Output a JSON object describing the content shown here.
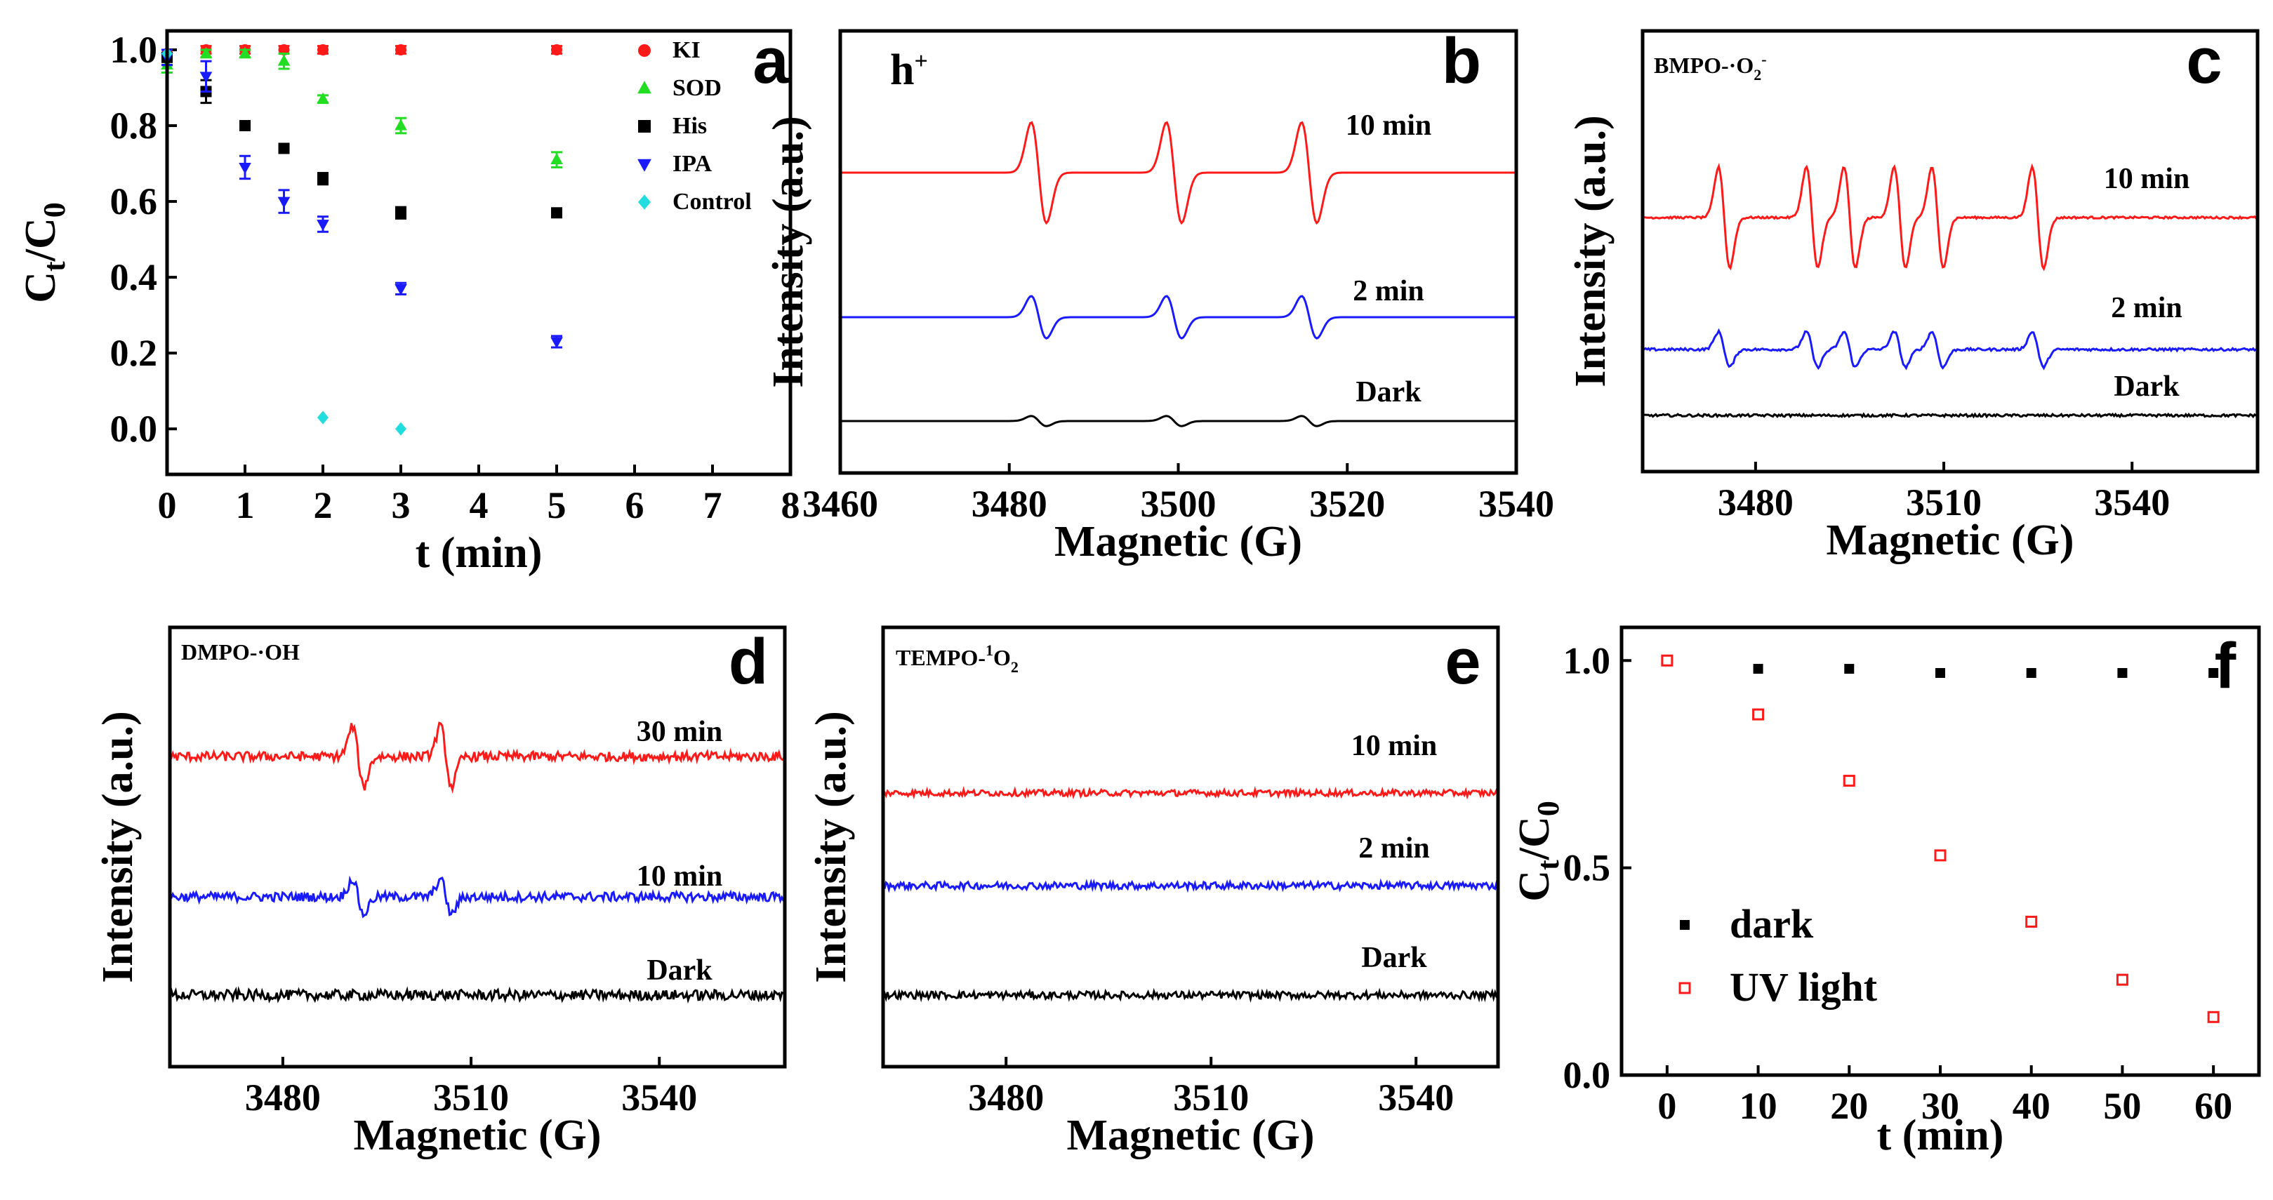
{
  "chart_data": [
    {
      "id": "a",
      "panel_label": "a",
      "type": "scatter",
      "xlabel": "t (min)",
      "ylabel_main": "C",
      "ylabel_sub1": "t",
      "ylabel_mid": "/C",
      "ylabel_sub2": "0",
      "xlim": [
        0,
        8
      ],
      "ylim": [
        -0.12,
        1.05
      ],
      "xticks": [
        "0",
        "1",
        "2",
        "3",
        "4",
        "5",
        "6",
        "7",
        "8"
      ],
      "yticks": [
        "0.0",
        "0.2",
        "0.4",
        "0.6",
        "0.8",
        "1.0"
      ],
      "series": [
        {
          "name": "KI",
          "color": "#ff1a1a",
          "marker": "circle",
          "x": [
            0,
            0.5,
            1,
            1.5,
            2,
            3,
            5
          ],
          "y": [
            0.99,
            1.0,
            1.0,
            1.0,
            1.0,
            1.0,
            1.0
          ],
          "err": [
            0.01,
            0.01,
            0.01,
            0.01,
            0.01,
            0.01,
            0.01
          ]
        },
        {
          "name": "SOD",
          "color": "#22dd22",
          "marker": "triangle-up",
          "x": [
            0,
            0.5,
            1,
            1.5,
            2,
            3,
            5
          ],
          "y": [
            0.96,
            0.99,
            0.99,
            0.97,
            0.87,
            0.8,
            0.71
          ],
          "err": [
            0.02,
            0.01,
            0.01,
            0.02,
            0.01,
            0.02,
            0.02
          ]
        },
        {
          "name": "His",
          "color": "#000000",
          "marker": "square",
          "x": [
            0,
            0.5,
            1,
            1.5,
            2,
            3,
            5
          ],
          "y": [
            0.98,
            0.89,
            0.8,
            0.74,
            0.66,
            0.57,
            0.57
          ],
          "err": [
            0.02,
            0.03,
            0.01,
            0.01,
            0.015,
            0.015,
            0.01
          ]
        },
        {
          "name": "IPA",
          "color": "#1a1aff",
          "marker": "triangle-down",
          "x": [
            0,
            0.5,
            1,
            1.5,
            2,
            3,
            5
          ],
          "y": [
            0.98,
            0.93,
            0.69,
            0.6,
            0.54,
            0.37,
            0.23
          ],
          "err": [
            0.02,
            0.04,
            0.03,
            0.03,
            0.02,
            0.015,
            0.015
          ]
        },
        {
          "name": "Control",
          "color": "#22dddd",
          "marker": "diamond",
          "x": [
            0,
            2,
            3
          ],
          "y": [
            0.99,
            0.03,
            0.0
          ],
          "err": [
            0,
            0,
            0
          ]
        }
      ]
    },
    {
      "id": "b",
      "panel_label": "b",
      "type": "line",
      "species_main": "h",
      "species_sup": "+",
      "xlabel": "Magnetic (G)",
      "ylabel": "Intensity (a.u.)",
      "xlim": [
        3460,
        3540
      ],
      "xticks": [
        "3460",
        "3480",
        "3500",
        "3520",
        "3540"
      ],
      "peak_centers": [
        3483.5,
        3499.5,
        3515.5
      ],
      "series": [
        {
          "name": "10 min",
          "color": "#ff1a1a",
          "amplitude": 1.0,
          "noise": 0.0
        },
        {
          "name": "2 min",
          "color": "#1a1aff",
          "amplitude": 0.42,
          "noise": 0.0
        },
        {
          "name": "Dark",
          "color": "#000000",
          "amplitude": 0.1,
          "noise": 0.0
        }
      ]
    },
    {
      "id": "c",
      "panel_label": "c",
      "type": "line",
      "species_main": "BMPO-·O",
      "species_sub": "2",
      "species_sup": "-",
      "xlabel": "Magnetic (G)",
      "ylabel": "Intensity (a.u.)",
      "xlim": [
        3462,
        3560
      ],
      "xticks": [
        "3480",
        "3510",
        "3540"
      ],
      "peak_centers": [
        3475,
        3489,
        3495,
        3503,
        3509,
        3525
      ],
      "series": [
        {
          "name": "10 min",
          "color": "#ff1a1a",
          "amplitude": 1.0,
          "noise": 0.04
        },
        {
          "name": "2 min",
          "color": "#1a1aff",
          "amplitude": 0.35,
          "noise": 0.05
        },
        {
          "name": "Dark",
          "color": "#000000",
          "amplitude": 0.0,
          "noise": 0.05
        }
      ]
    },
    {
      "id": "d",
      "panel_label": "d",
      "type": "line",
      "species_main": "DMPO-·OH",
      "xlabel": "Magnetic (G)",
      "ylabel": "Intensity (a.u.)",
      "xlim": [
        3462,
        3560
      ],
      "xticks": [
        "3480",
        "3510",
        "3540"
      ],
      "peak_centers": [
        3492,
        3506
      ],
      "series": [
        {
          "name": "30 min",
          "color": "#ff1a1a",
          "amplitude": 0.6,
          "noise": 0.18
        },
        {
          "name": "10 min",
          "color": "#1a1aff",
          "amplitude": 0.35,
          "noise": 0.18
        },
        {
          "name": "Dark",
          "color": "#000000",
          "amplitude": 0.0,
          "noise": 0.2
        }
      ]
    },
    {
      "id": "e",
      "panel_label": "e",
      "type": "line",
      "species_main": "TEMPO-",
      "species_sup": "1",
      "species_tail": "O",
      "species_sub": "2",
      "xlabel": "Magnetic (G)",
      "ylabel": "Intensity (a.u.)",
      "xlim": [
        3462,
        3552
      ],
      "xticks": [
        "3480",
        "3510",
        "3540"
      ],
      "peak_centers": [],
      "series": [
        {
          "name": "10 min",
          "color": "#ff1a1a",
          "amplitude": 0.0,
          "noise": 0.12
        },
        {
          "name": "2 min",
          "color": "#1a1aff",
          "amplitude": 0.0,
          "noise": 0.14
        },
        {
          "name": "Dark",
          "color": "#000000",
          "amplitude": 0.0,
          "noise": 0.14
        }
      ]
    },
    {
      "id": "f",
      "panel_label": "f",
      "type": "scatter",
      "xlabel": "t (min)",
      "ylabel_main": "C",
      "ylabel_sub1": "t",
      "ylabel_mid": "/C",
      "ylabel_sub2": "0",
      "xlim": [
        -5,
        65
      ],
      "ylim": [
        0,
        1.08
      ],
      "xticks": [
        "0",
        "10",
        "20",
        "30",
        "40",
        "50",
        "60"
      ],
      "yticks": [
        "0.0",
        "0.5",
        "1.0"
      ],
      "series": [
        {
          "name": "dark",
          "color": "#000000",
          "marker": "square-filled",
          "x": [
            10,
            20,
            30,
            40,
            50,
            60
          ],
          "y": [
            0.98,
            0.98,
            0.97,
            0.97,
            0.97,
            0.97
          ]
        },
        {
          "name": "UV light",
          "color": "#ff1a1a",
          "marker": "square-open",
          "x": [
            0,
            10,
            20,
            30,
            40,
            50,
            60
          ],
          "y": [
            1.0,
            0.87,
            0.71,
            0.53,
            0.37,
            0.23,
            0.14
          ]
        }
      ]
    }
  ]
}
